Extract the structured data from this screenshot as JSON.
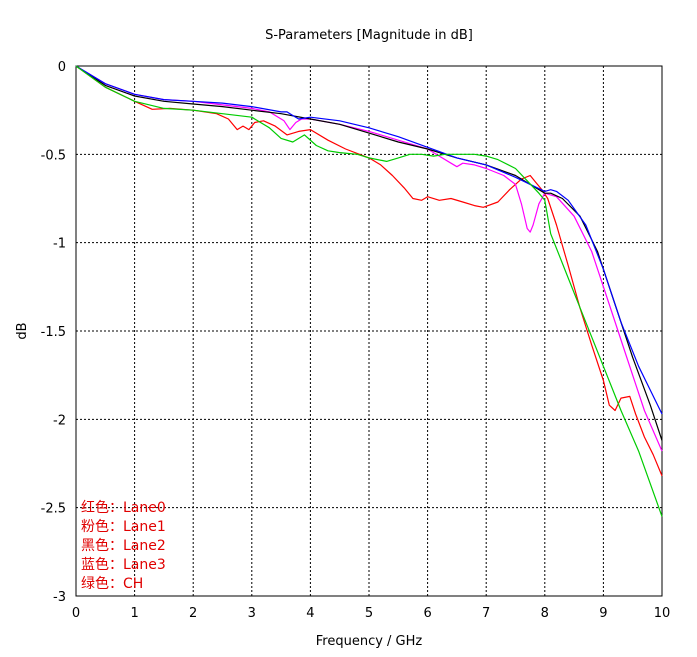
{
  "chart_data": {
    "type": "line",
    "title": "S-Parameters [Magnitude in dB]",
    "xlabel": "Frequency / GHz",
    "ylabel": "dB",
    "xlim": [
      0,
      10
    ],
    "ylim": [
      -3,
      0
    ],
    "xticks": [
      0,
      1,
      2,
      3,
      4,
      5,
      6,
      7,
      8,
      9,
      10
    ],
    "xtick_labels": [
      "0",
      "1",
      "2",
      "3",
      "4",
      "5",
      "6",
      "7",
      "8",
      "9",
      "10"
    ],
    "yticks": [
      0,
      -0.5,
      -1,
      -1.5,
      -2,
      -2.5,
      -3
    ],
    "ytick_labels": [
      "0",
      "-0.5",
      "-1",
      "-1.5",
      "-2",
      "-2.5",
      "-3"
    ],
    "grid": true,
    "series": [
      {
        "name": "Lane0",
        "color": "#ff0000",
        "x": [
          0,
          0.5,
          1,
          1.3,
          1.6,
          2,
          2.4,
          2.6,
          2.75,
          2.85,
          2.95,
          3.05,
          3.2,
          3.4,
          3.6,
          3.8,
          4,
          4.3,
          4.6,
          5,
          5.2,
          5.4,
          5.6,
          5.75,
          5.9,
          6,
          6.2,
          6.4,
          6.6,
          6.8,
          6.95,
          7.2,
          7.4,
          7.6,
          7.75,
          7.85,
          7.95,
          8.05,
          8.2,
          8.4,
          8.6,
          8.8,
          9.0,
          9.1,
          9.2,
          9.3,
          9.45,
          9.55,
          9.7,
          9.85,
          10
        ],
        "y": [
          0,
          -0.12,
          -0.2,
          -0.245,
          -0.24,
          -0.25,
          -0.27,
          -0.3,
          -0.36,
          -0.34,
          -0.36,
          -0.32,
          -0.31,
          -0.34,
          -0.39,
          -0.37,
          -0.36,
          -0.42,
          -0.47,
          -0.52,
          -0.56,
          -0.62,
          -0.69,
          -0.75,
          -0.76,
          -0.74,
          -0.76,
          -0.75,
          -0.77,
          -0.79,
          -0.8,
          -0.77,
          -0.7,
          -0.64,
          -0.62,
          -0.66,
          -0.7,
          -0.75,
          -0.9,
          -1.13,
          -1.37,
          -1.58,
          -1.78,
          -1.92,
          -1.95,
          -1.88,
          -1.87,
          -1.97,
          -2.1,
          -2.2,
          -2.32
        ]
      },
      {
        "name": "Lane1",
        "color": "#ff00ff",
        "x": [
          0,
          0.5,
          1,
          1.5,
          2,
          2.5,
          3,
          3.3,
          3.55,
          3.65,
          3.75,
          3.85,
          4,
          4.5,
          5,
          5.5,
          6,
          6.2,
          6.4,
          6.5,
          6.6,
          6.8,
          7,
          7.3,
          7.5,
          7.6,
          7.7,
          7.75,
          7.8,
          7.9,
          8,
          8.2,
          8.5,
          8.8,
          9.1,
          9.4,
          9.7,
          10
        ],
        "y": [
          0,
          -0.1,
          -0.16,
          -0.19,
          -0.2,
          -0.22,
          -0.24,
          -0.26,
          -0.31,
          -0.36,
          -0.32,
          -0.3,
          -0.3,
          -0.33,
          -0.37,
          -0.42,
          -0.47,
          -0.51,
          -0.55,
          -0.57,
          -0.55,
          -0.56,
          -0.58,
          -0.62,
          -0.67,
          -0.78,
          -0.92,
          -0.94,
          -0.9,
          -0.78,
          -0.72,
          -0.74,
          -0.85,
          -1.05,
          -1.35,
          -1.65,
          -1.95,
          -2.18
        ]
      },
      {
        "name": "Lane2",
        "color": "#000000",
        "x": [
          0,
          0.5,
          1,
          1.5,
          2,
          2.5,
          3,
          3.5,
          4,
          4.5,
          5,
          5.5,
          6,
          6.5,
          7,
          7.5,
          7.8,
          8,
          8.1,
          8.3,
          8.6,
          8.9,
          9.2,
          9.5,
          9.8,
          10
        ],
        "y": [
          0,
          -0.11,
          -0.17,
          -0.2,
          -0.215,
          -0.23,
          -0.25,
          -0.27,
          -0.3,
          -0.33,
          -0.38,
          -0.43,
          -0.47,
          -0.52,
          -0.56,
          -0.62,
          -0.68,
          -0.72,
          -0.72,
          -0.75,
          -0.85,
          -1.05,
          -1.35,
          -1.65,
          -1.92,
          -2.12
        ]
      },
      {
        "name": "Lane3",
        "color": "#0000ff",
        "x": [
          0,
          0.5,
          1,
          1.5,
          2,
          2.5,
          3,
          3.5,
          3.6,
          3.7,
          3.8,
          4,
          4.5,
          5,
          5.5,
          6,
          6.5,
          7,
          7.5,
          8,
          8.1,
          8.2,
          8.4,
          8.7,
          9,
          9.3,
          9.6,
          10
        ],
        "y": [
          0,
          -0.1,
          -0.16,
          -0.19,
          -0.2,
          -0.21,
          -0.23,
          -0.26,
          -0.26,
          -0.28,
          -0.3,
          -0.29,
          -0.31,
          -0.35,
          -0.4,
          -0.46,
          -0.52,
          -0.56,
          -0.63,
          -0.71,
          -0.7,
          -0.71,
          -0.76,
          -0.9,
          -1.15,
          -1.45,
          -1.7,
          -1.97
        ]
      },
      {
        "name": "CH",
        "color": "#00cc00",
        "x": [
          0,
          0.5,
          1,
          1.5,
          2,
          2.5,
          3,
          3.3,
          3.5,
          3.7,
          3.9,
          4.1,
          4.3,
          4.5,
          4.8,
          5,
          5.3,
          5.5,
          5.7,
          5.9,
          6.1,
          6.3,
          6.5,
          6.8,
          7,
          7.2,
          7.5,
          7.7,
          7.9,
          8.0,
          8.1,
          8.4,
          8.7,
          9,
          9.3,
          9.6,
          10
        ],
        "y": [
          0,
          -0.12,
          -0.2,
          -0.24,
          -0.25,
          -0.27,
          -0.29,
          -0.35,
          -0.41,
          -0.43,
          -0.39,
          -0.45,
          -0.48,
          -0.49,
          -0.5,
          -0.52,
          -0.54,
          -0.52,
          -0.5,
          -0.5,
          -0.51,
          -0.5,
          -0.5,
          -0.5,
          -0.51,
          -0.53,
          -0.58,
          -0.65,
          -0.72,
          -0.76,
          -0.95,
          -1.2,
          -1.45,
          -1.7,
          -1.95,
          -2.18,
          -2.55
        ]
      }
    ],
    "annotations": [
      "红色：Lane0",
      "粉色：Lane1",
      "黑色：Lane2",
      "蓝色：Lane3",
      "绿色：CH"
    ]
  }
}
